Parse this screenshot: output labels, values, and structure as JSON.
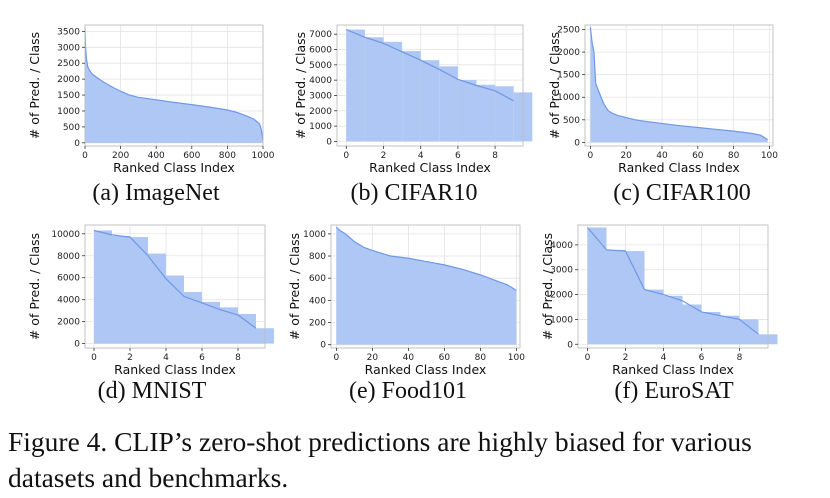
{
  "caption": "Figure 4. CLIP’s zero-shot predictions are highly biased for various datasets and benchmarks.",
  "style": {
    "fill_color": "#aec7f4",
    "line_color": "#6f98e6"
  },
  "chart_data": [
    {
      "type": "area",
      "subcaption": "(a) ImageNet",
      "xlabel": "Ranked Class Index",
      "ylabel": "# of Pred. / Class",
      "xlim": [
        0,
        1000
      ],
      "ylim": [
        -100,
        3700
      ],
      "xticks": [
        0,
        200,
        400,
        600,
        800,
        1000
      ],
      "yticks": [
        0,
        500,
        1000,
        1500,
        2000,
        2500,
        3000,
        3500
      ],
      "x": [
        0,
        3,
        8,
        15,
        25,
        40,
        60,
        80,
        100,
        150,
        200,
        250,
        300,
        400,
        500,
        600,
        700,
        800,
        850,
        900,
        950,
        980,
        990,
        1000
      ],
      "values": [
        3600,
        3000,
        2650,
        2400,
        2280,
        2160,
        2080,
        2000,
        1920,
        1760,
        1620,
        1500,
        1430,
        1350,
        1270,
        1200,
        1120,
        1030,
        960,
        860,
        740,
        600,
        420,
        100
      ]
    },
    {
      "type": "bar",
      "subcaption": "(b) CIFAR10",
      "xlabel": "Ranked Class Index",
      "ylabel": "# of Pred. / Class",
      "xlim": [
        -0.5,
        9.5
      ],
      "ylim": [
        -300,
        7600
      ],
      "xticks": [
        0,
        2,
        4,
        6,
        8
      ],
      "yticks": [
        0,
        1000,
        2000,
        3000,
        4000,
        5000,
        6000,
        7000
      ],
      "x": [
        0,
        1,
        2,
        3,
        4,
        5,
        6,
        7,
        8,
        9
      ],
      "values": [
        7300,
        6800,
        6500,
        5900,
        5300,
        4900,
        4000,
        3700,
        3600,
        3200
      ],
      "line": [
        7300,
        6800,
        6400,
        5850,
        5300,
        4700,
        4050,
        3650,
        3300,
        2650
      ]
    },
    {
      "type": "area",
      "subcaption": "(c) CIFAR100",
      "xlabel": "Ranked Class Index",
      "ylabel": "# of Pred. / Class",
      "xlim": [
        -3,
        102
      ],
      "ylim": [
        -80,
        2600
      ],
      "xticks": [
        0,
        20,
        40,
        60,
        80,
        100
      ],
      "yticks": [
        0,
        500,
        1000,
        1500,
        2000,
        2500
      ],
      "x": [
        0,
        1,
        2,
        3,
        4,
        5,
        6,
        7,
        8,
        9,
        10,
        12,
        15,
        20,
        25,
        30,
        40,
        50,
        60,
        70,
        80,
        90,
        95,
        99
      ],
      "values": [
        2550,
        2200,
        2000,
        1300,
        1200,
        1100,
        1000,
        900,
        820,
        760,
        700,
        650,
        600,
        550,
        500,
        470,
        420,
        370,
        330,
        290,
        250,
        200,
        160,
        60
      ]
    },
    {
      "type": "bar",
      "subcaption": "(d) MNIST",
      "xlabel": "Ranked Class Index",
      "ylabel": "# of Pred. / Class",
      "xlim": [
        -0.5,
        9.5
      ],
      "ylim": [
        -400,
        10800
      ],
      "xticks": [
        0,
        2,
        4,
        6,
        8
      ],
      "yticks": [
        0,
        2000,
        4000,
        6000,
        8000,
        10000
      ],
      "x": [
        0,
        1,
        2,
        3,
        4,
        5,
        6,
        7,
        8,
        9
      ],
      "values": [
        10300,
        9800,
        9700,
        8200,
        6200,
        4700,
        3800,
        3300,
        2700,
        1400
      ],
      "line": [
        10300,
        9900,
        9700,
        8000,
        5900,
        4300,
        3700,
        3100,
        2600,
        1400
      ]
    },
    {
      "type": "area",
      "subcaption": "(e) Food101",
      "xlabel": "Ranked Class Index",
      "ylabel": "# of Pred. / Class",
      "xlim": [
        -3,
        102
      ],
      "ylim": [
        -30,
        1080
      ],
      "xticks": [
        0,
        20,
        40,
        60,
        80,
        100
      ],
      "yticks": [
        0,
        200,
        400,
        600,
        800,
        1000
      ],
      "x": [
        0,
        2,
        5,
        10,
        15,
        20,
        30,
        40,
        50,
        60,
        70,
        80,
        85,
        90,
        95,
        100
      ],
      "values": [
        1060,
        1030,
        1000,
        930,
        880,
        850,
        800,
        780,
        750,
        720,
        680,
        630,
        600,
        570,
        540,
        490
      ]
    },
    {
      "type": "bar",
      "subcaption": "(f) EuroSAT",
      "xlabel": "Ranked Class Index",
      "ylabel": "# of Pred. / Class",
      "xlim": [
        -0.5,
        9.5
      ],
      "ylim": [
        -150,
        4800
      ],
      "xticks": [
        0,
        2,
        4,
        6,
        8
      ],
      "yticks": [
        0,
        1000,
        2000,
        3000,
        4000
      ],
      "x": [
        0,
        1,
        2,
        3,
        4,
        5,
        6,
        7,
        8,
        9
      ],
      "values": [
        4700,
        3800,
        3750,
        2200,
        1950,
        1600,
        1300,
        1150,
        1000,
        400
      ],
      "line": [
        4700,
        3800,
        3750,
        2200,
        2000,
        1750,
        1300,
        1150,
        1000,
        400
      ]
    }
  ]
}
